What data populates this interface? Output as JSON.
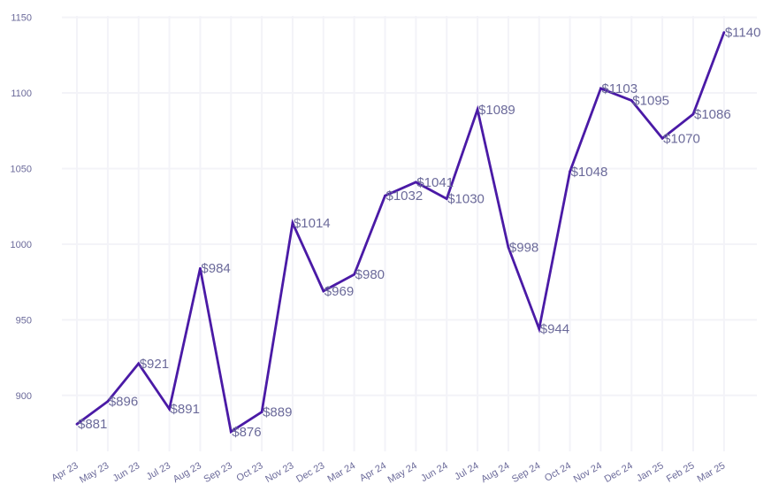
{
  "chart_data": {
    "type": "line",
    "title": "",
    "xlabel": "",
    "ylabel": "",
    "categories": [
      "Apr 23",
      "May 23",
      "Jun 23",
      "Jul 23",
      "Aug 23",
      "Sep 23",
      "Oct 23",
      "Nov 23",
      "Dec 23",
      "Mar 24",
      "Apr 24",
      "May 24",
      "Jun 24",
      "Jul 24",
      "Aug 24",
      "Sep 24",
      "Oct 24",
      "Nov 24",
      "Dec 24",
      "Jan 25",
      "Feb 25",
      "Mar 25"
    ],
    "values": [
      881,
      896,
      921,
      891,
      984,
      876,
      889,
      1014,
      969,
      980,
      1032,
      1041,
      1030,
      1089,
      998,
      944,
      1048,
      1103,
      1095,
      1070,
      1086,
      1140
    ],
    "labels": [
      "$881",
      "$896",
      "$921",
      "$891",
      "$984",
      "$876",
      "$889",
      "$1014",
      "$969",
      "$980",
      "$1032",
      "$1041",
      "$1030",
      "$1089",
      "$998",
      "$944",
      "$1048",
      "$1103",
      "$1095",
      "$1070",
      "$1086",
      "$1140"
    ],
    "ylim": [
      863,
      1150
    ],
    "yticks": [
      900,
      950,
      1000,
      1050,
      1100,
      1150
    ],
    "ytick_labels": [
      "900",
      "950",
      "1000",
      "1050",
      "1100",
      "1150"
    ],
    "grid": true,
    "line_color": "#4a1aa6",
    "label_color": "#6b6a9a"
  }
}
